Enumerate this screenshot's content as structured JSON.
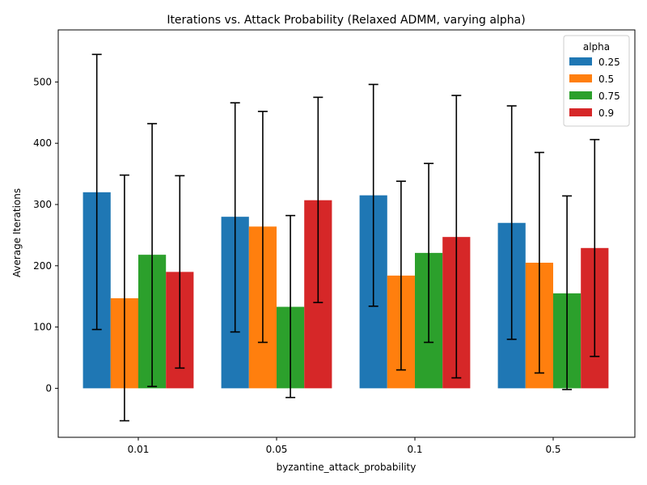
{
  "chart_data": {
    "type": "bar",
    "title": "Iterations vs. Attack Probability (Relaxed ADMM, varying alpha)",
    "xlabel": "byzantine_attack_probability",
    "ylabel": "Average Iterations",
    "categories": [
      "0.01",
      "0.05",
      "0.1",
      "0.5"
    ],
    "ylim": [
      -80,
      585
    ],
    "yticks": [
      0,
      100,
      200,
      300,
      400,
      500
    ],
    "legend": {
      "title": "alpha",
      "placement": "top-right"
    },
    "error_bars": true,
    "grid": false,
    "series": [
      {
        "name": "0.25",
        "color": "#1f77b4",
        "values": [
          320,
          280,
          315,
          270
        ],
        "err_low": [
          96,
          92,
          134,
          80
        ],
        "err_high": [
          545,
          466,
          496,
          461
        ]
      },
      {
        "name": "0.5",
        "color": "#ff7f0e",
        "values": [
          147,
          264,
          184,
          205
        ],
        "err_low": [
          -53,
          75,
          30,
          25
        ],
        "err_high": [
          348,
          452,
          338,
          385
        ]
      },
      {
        "name": "0.75",
        "color": "#2ca02c",
        "values": [
          218,
          133,
          221,
          155
        ],
        "err_low": [
          3,
          -15,
          75,
          -2
        ],
        "err_high": [
          432,
          282,
          367,
          314
        ]
      },
      {
        "name": "0.9",
        "color": "#d62728",
        "values": [
          190,
          307,
          247,
          229
        ],
        "err_low": [
          33,
          140,
          17,
          52
        ],
        "err_high": [
          347,
          475,
          478,
          406
        ]
      }
    ]
  }
}
